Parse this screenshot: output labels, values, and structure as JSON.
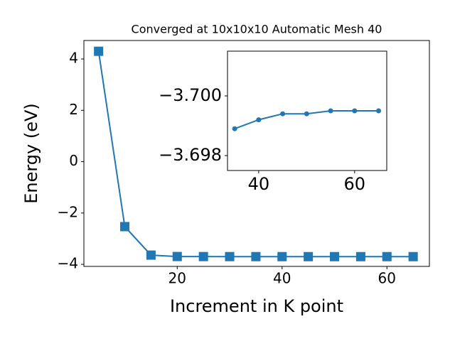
{
  "chart_data": [
    {
      "type": "line",
      "title": "Converged at 10x10x10 Automatic Mesh 40",
      "x_label": "Increment in K point",
      "y_label": "Energy (eV)",
      "x": [
        5,
        10,
        15,
        20,
        25,
        30,
        35,
        40,
        45,
        50,
        55,
        60,
        65
      ],
      "series": [
        {
          "color": "#1f77b4",
          "marker": "square",
          "values": [
            4.3,
            -2.53,
            -3.64,
            -3.695,
            -3.697,
            -3.698,
            -3.6989,
            -3.6992,
            -3.6994,
            -3.6994,
            -3.6995,
            -3.6995,
            -3.6995
          ]
        }
      ],
      "xlim": [
        2.2,
        68.1
      ],
      "xticks": [
        20,
        40,
        60
      ],
      "ylim": [
        -4.08,
        4.72
      ],
      "yticks": [
        -4,
        -2,
        0,
        2,
        4
      ]
    },
    {
      "type": "line",
      "x": [
        35,
        40,
        45,
        50,
        55,
        60,
        65
      ],
      "series": [
        {
          "color": "#1f77b4",
          "marker": "circle",
          "values": [
            -3.6989,
            -3.6992,
            -3.6994,
            -3.6994,
            -3.6995,
            -3.6995,
            -3.6995
          ]
        }
      ],
      "xlim": [
        33.5,
        66.7
      ],
      "xticks": [
        40,
        60
      ],
      "ylim": [
        -3.6975,
        -3.7015
      ],
      "yticks": [
        {
          "value": -3.7,
          "label": "−3.700"
        },
        {
          "value": -3.698,
          "label": "−3.698"
        }
      ]
    }
  ]
}
